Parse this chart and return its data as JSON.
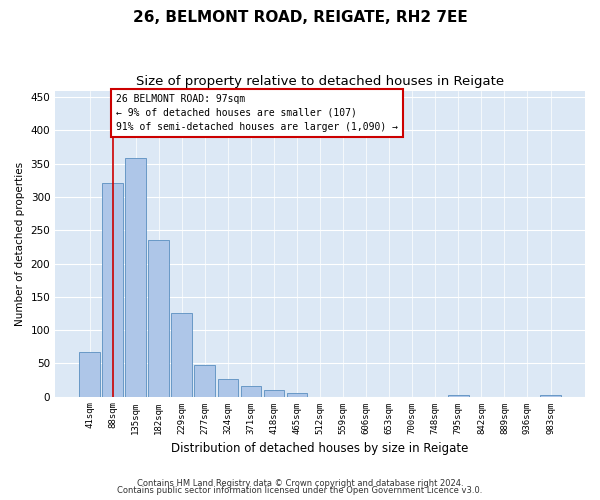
{
  "title1": "26, BELMONT ROAD, REIGATE, RH2 7EE",
  "title2": "Size of property relative to detached houses in Reigate",
  "xlabel": "Distribution of detached houses by size in Reigate",
  "ylabel": "Number of detached properties",
  "categories": [
    "41sqm",
    "88sqm",
    "135sqm",
    "182sqm",
    "229sqm",
    "277sqm",
    "324sqm",
    "371sqm",
    "418sqm",
    "465sqm",
    "512sqm",
    "559sqm",
    "606sqm",
    "653sqm",
    "700sqm",
    "748sqm",
    "795sqm",
    "842sqm",
    "889sqm",
    "936sqm",
    "983sqm"
  ],
  "values": [
    67,
    321,
    358,
    235,
    125,
    48,
    26,
    16,
    10,
    5,
    0,
    0,
    0,
    0,
    0,
    0,
    2,
    0,
    0,
    0,
    2
  ],
  "bar_color": "#aec6e8",
  "bar_edge_color": "#5a8fc0",
  "bg_color": "#dce8f5",
  "grid_color": "#ffffff",
  "vline_x": 1.0,
  "vline_color": "#cc0000",
  "annotation_line1": "26 BELMONT ROAD: 97sqm",
  "annotation_line2": "← 9% of detached houses are smaller (107)",
  "annotation_line3": "91% of semi-detached houses are larger (1,090) →",
  "annotation_box_color": "#cc0000",
  "footer1": "Contains HM Land Registry data © Crown copyright and database right 2024.",
  "footer2": "Contains public sector information licensed under the Open Government Licence v3.0.",
  "ylim": [
    0,
    460
  ],
  "yticks": [
    0,
    50,
    100,
    150,
    200,
    250,
    300,
    350,
    400,
    450
  ]
}
